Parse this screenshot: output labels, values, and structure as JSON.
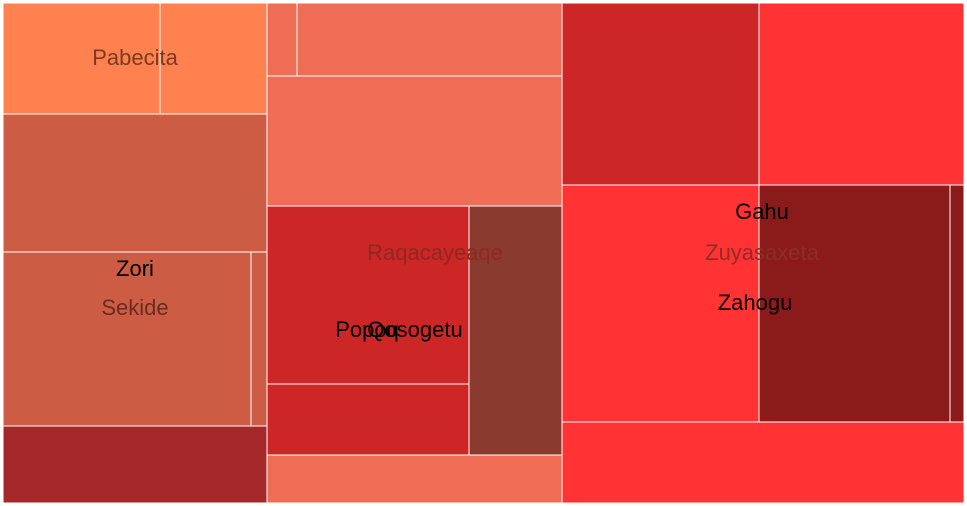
{
  "chart_data": {
    "type": "treemap",
    "title": "",
    "nodes": [
      {
        "name": "Pabecita",
        "value": 8,
        "color": "#ff8150",
        "label_color": "#7a3b22"
      },
      {
        "name": "",
        "value": 3,
        "color": "#ff8150"
      },
      {
        "name": "",
        "value": 34,
        "color": "#cd5c45"
      },
      {
        "name": "Sekide",
        "value": 40,
        "color": "#cd5c45",
        "label_color": "#6a2c1c"
      },
      {
        "name": "Zori",
        "value": 40,
        "color": "#cd5c45",
        "label_color": "#000000"
      },
      {
        "name": "",
        "value": 2,
        "color": "#cd5c45"
      },
      {
        "name": "",
        "value": 13,
        "color": "#a5282a"
      },
      {
        "name": "",
        "value": 2,
        "color": "#ef6c55"
      },
      {
        "name": "",
        "value": 19,
        "color": "#ef6c55"
      },
      {
        "name": "",
        "value": 35,
        "color": "#ef6c55"
      },
      {
        "name": "Raqacayeaqe",
        "value": 18,
        "color": "#ef6c55",
        "label_color": "#8f2820"
      },
      {
        "name": "Popoq",
        "value": 33,
        "color": "#cc2626",
        "label_color": "#000000"
      },
      {
        "name": "Qosogetu",
        "value": 24,
        "color": "#cc2626",
        "label_color": "#000000"
      },
      {
        "name": "",
        "value": 13,
        "color": "#8b3a30"
      },
      {
        "name": "",
        "value": 12,
        "color": "#cc2626"
      },
      {
        "name": "",
        "value": 33,
        "color": "#ff3333"
      },
      {
        "name": "",
        "value": 37,
        "color": "#ff3333"
      },
      {
        "name": "Zuyasaxeta",
        "value": 46,
        "color": "#8b1a1a",
        "label_color": "#8f2d28"
      },
      {
        "name": "Gahu",
        "value": 43,
        "color": "#8b1a1a",
        "label_color": "#000000"
      },
      {
        "name": "Zahogu",
        "value": 3,
        "color": "#8b1a1a",
        "label_color": "#000000"
      },
      {
        "name": "",
        "value": 5,
        "color": "#ff3333"
      },
      {
        "name": "",
        "value": 16,
        "color": "#c93030"
      }
    ]
  }
}
